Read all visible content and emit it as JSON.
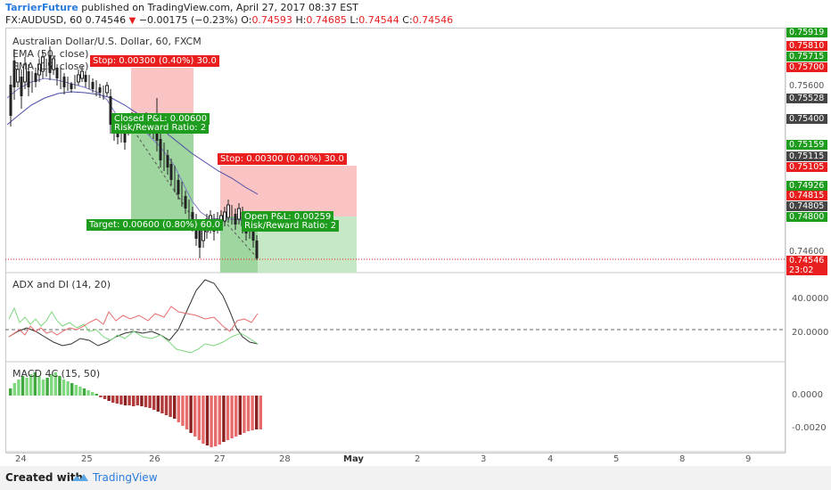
{
  "header": {
    "author": "TarrierFuture",
    "published_text": " published on TradingView.com, April 27, 2017 08:37 EST",
    "symbol": "FX:AUDUSD, 60",
    "last": "0.74546",
    "change": "−0.00175 (−0.23%)",
    "o_label": "O:",
    "o_value": "0.74593",
    "h_label": "H:",
    "h_value": "0.74685",
    "l_label": "L:",
    "l_value": "0.74544",
    "c_label": "C:",
    "c_value": "0.74546"
  },
  "main_pane": {
    "title": "Australian Dollar/U.S. Dollar, 60, FXCM",
    "ema50": "EMA (50, close)",
    "ema15": "EMA (15, close)",
    "trade1": {
      "stop_label": "Stop: 0.00300 (0.40%) 30.0",
      "closed_label": "Closed P&L: 0.00600",
      "rr_label": "Risk/Reward Ratio: 2"
    },
    "trade2": {
      "stop_label": "Stop: 0.00300 (0.40%) 30.0",
      "open_label": "Open P&L: 0.00259",
      "rr_label": "Risk/Reward Ratio: 2",
      "target_label": "Target: 0.00600 (0.80%) 60.0"
    }
  },
  "price_scale": [
    {
      "text": "0.75919",
      "style": "green"
    },
    {
      "text": "0.75810",
      "style": "red"
    },
    {
      "text": "0.75715",
      "style": "green"
    },
    {
      "text": "0.75700",
      "style": "red"
    },
    {
      "text": "0.75600",
      "style": "plain"
    },
    {
      "text": "0.75528",
      "style": "dark"
    },
    {
      "text": "0.75400",
      "style": "dark"
    },
    {
      "text": "0.75159",
      "style": "green"
    },
    {
      "text": "0.75115",
      "style": "dark"
    },
    {
      "text": "0.75105",
      "style": "red"
    },
    {
      "text": "0.74926",
      "style": "green"
    },
    {
      "text": "0.74815",
      "style": "red"
    },
    {
      "text": "0.74805",
      "style": "dark"
    },
    {
      "text": "0.74800",
      "style": "green"
    },
    {
      "text": "0.74600",
      "style": "plain"
    },
    {
      "text": "0.74546",
      "style": "red"
    },
    {
      "text": "23:02",
      "style": "red"
    }
  ],
  "adx_pane": {
    "title": "ADX and DI (14, 20)",
    "scale": [
      "40.0000",
      "20.0000"
    ]
  },
  "macd_pane": {
    "title": "MACD 4C (15, 50)",
    "scale": [
      "0.0000",
      "-0.0020"
    ]
  },
  "time_axis": [
    "24",
    "25",
    "26",
    "27",
    "28",
    "May",
    "2",
    "3",
    "4",
    "5",
    "8",
    "9"
  ],
  "footer": {
    "made_with": "Created with",
    "brand": "TradingView"
  },
  "colors": {
    "up": "#1e9c1e",
    "down": "#e91e1e",
    "stop_zone": "#fbc4c4",
    "target_zone": "#b7e0b7",
    "ema": "#5b5bb8",
    "author": "#2a7bde"
  }
}
